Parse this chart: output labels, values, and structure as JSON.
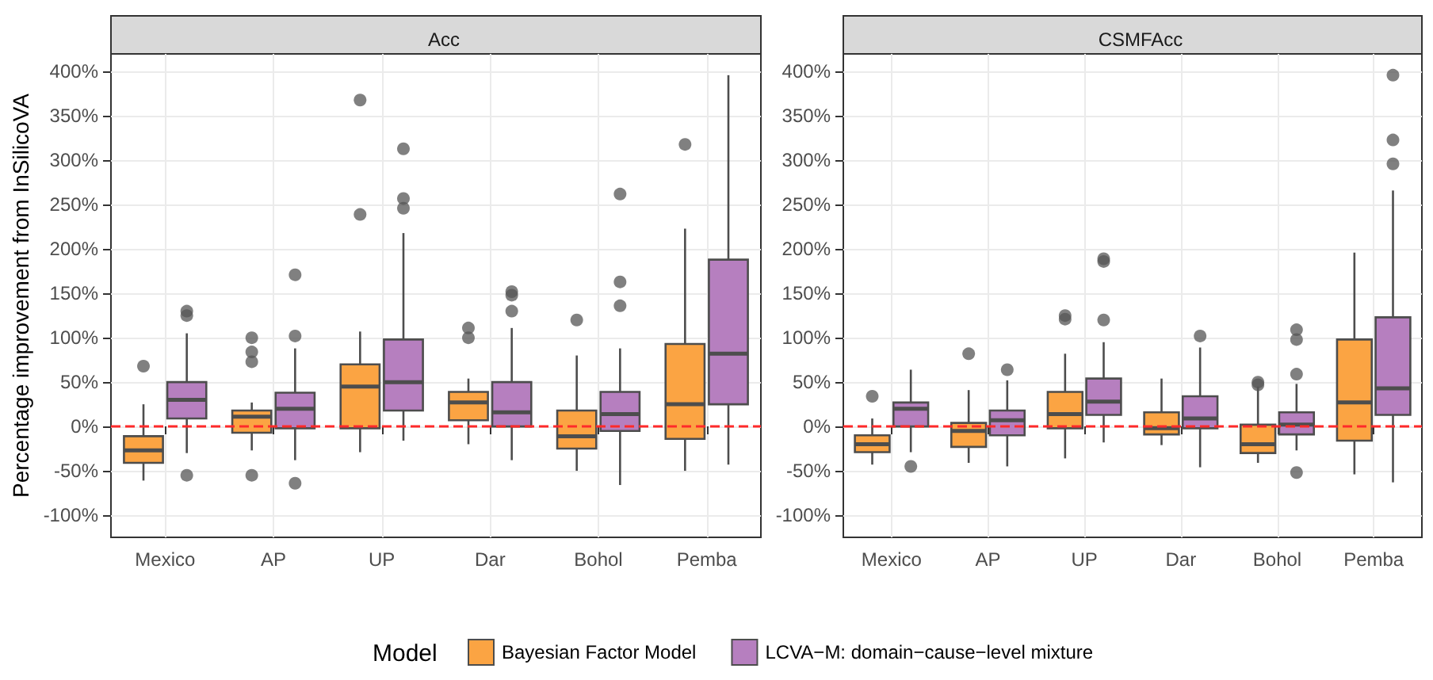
{
  "chart_data": [
    {
      "type": "box",
      "title": "Acc",
      "ylabel": "Percentage improvement from InSilicoVA",
      "legend_title": "Model",
      "legend": "bottom",
      "grid": true,
      "categories": [
        "Mexico",
        "AP",
        "UP",
        "Dar",
        "Bohol",
        "Pemba"
      ],
      "ylim": [
        -125,
        420
      ],
      "yticks": [
        {
          "value": -100,
          "label": "-100%"
        },
        {
          "value": -50,
          "label": "-50%"
        },
        {
          "value": 0,
          "label": "0%"
        },
        {
          "value": 50,
          "label": "50%"
        },
        {
          "value": 100,
          "label": "100%"
        },
        {
          "value": 150,
          "label": "150%"
        },
        {
          "value": 200,
          "label": "200%"
        },
        {
          "value": 250,
          "label": "250%"
        },
        {
          "value": 300,
          "label": "300%"
        },
        {
          "value": 350,
          "label": "350%"
        },
        {
          "value": 400,
          "label": "400%"
        }
      ],
      "ref_lines": [
        {
          "axis": "y",
          "value": 0,
          "color": "#ff2a2a",
          "line_style": "dashed"
        }
      ],
      "series": [
        {
          "name": "Bayesian Factor Model",
          "color": "#fba443",
          "boxes": [
            {
              "low": -61,
              "q1": -41,
              "median": -27,
              "q3": -11,
              "high": 25,
              "outliers": [
                68
              ]
            },
            {
              "low": -27,
              "q1": -7,
              "median": 11,
              "q3": 18,
              "high": 27,
              "outliers": [
                100,
                84,
                73,
                -55
              ]
            },
            {
              "low": -29,
              "q1": -2,
              "median": 45,
              "q3": 70,
              "high": 107,
              "outliers": [
                368,
                239
              ]
            },
            {
              "low": -20,
              "q1": 7,
              "median": 27,
              "q3": 39,
              "high": 54,
              "outliers": [
                111,
                100
              ]
            },
            {
              "low": -50,
              "q1": -25,
              "median": -11,
              "q3": 18,
              "high": 80,
              "outliers": [
                120
              ]
            },
            {
              "low": -50,
              "q1": -14,
              "median": 25,
              "q3": 93,
              "high": 223,
              "outliers": [
                318
              ]
            }
          ]
        },
        {
          "name": "LCVA−M: domain−cause−level mixture",
          "color": "#b67fbf",
          "boxes": [
            {
              "low": -30,
              "q1": 9,
              "median": 30,
              "q3": 50,
              "high": 105,
              "outliers": [
                125,
                130,
                -55
              ]
            },
            {
              "low": -38,
              "q1": -2,
              "median": 20,
              "q3": 38,
              "high": 88,
              "outliers": [
                171,
                102,
                -64
              ]
            },
            {
              "low": -16,
              "q1": 18,
              "median": 50,
              "q3": 98,
              "high": 218,
              "outliers": [
                313,
                257,
                246
              ]
            },
            {
              "low": -38,
              "q1": 0,
              "median": 16,
              "q3": 50,
              "high": 111,
              "outliers": [
                152,
                148,
                130
              ]
            },
            {
              "low": -66,
              "q1": -5,
              "median": 14,
              "q3": 39,
              "high": 88,
              "outliers": [
                262,
                163,
                136
              ]
            },
            {
              "low": -43,
              "q1": 25,
              "median": 82,
              "q3": 188,
              "high": 396
            }
          ]
        }
      ]
    },
    {
      "type": "box",
      "title": "CSMFAcc",
      "grid": true,
      "categories": [
        "Mexico",
        "AP",
        "UP",
        "Dar",
        "Bohol",
        "Pemba"
      ],
      "ylim": [
        -125,
        420
      ],
      "yticks": [
        {
          "value": -100,
          "label": "-100%"
        },
        {
          "value": -50,
          "label": "-50%"
        },
        {
          "value": 0,
          "label": "0%"
        },
        {
          "value": 50,
          "label": "50%"
        },
        {
          "value": 100,
          "label": "100%"
        },
        {
          "value": 150,
          "label": "150%"
        },
        {
          "value": 200,
          "label": "200%"
        },
        {
          "value": 250,
          "label": "250%"
        },
        {
          "value": 300,
          "label": "300%"
        },
        {
          "value": 350,
          "label": "350%"
        },
        {
          "value": 400,
          "label": "400%"
        }
      ],
      "ref_lines": [
        {
          "axis": "y",
          "value": 0,
          "color": "#ff2a2a",
          "line_style": "dashed"
        }
      ],
      "series": [
        {
          "color": "#fba443",
          "boxes": [
            {
              "low": -43,
              "q1": -29,
              "median": -20,
              "q3": -10,
              "high": 9,
              "outliers": [
                34
              ]
            },
            {
              "low": -41,
              "q1": -23,
              "median": -5,
              "q3": 4,
              "high": 41,
              "outliers": [
                82
              ]
            },
            {
              "low": -36,
              "q1": -2,
              "median": 14,
              "q3": 39,
              "high": 82,
              "outliers": [
                121,
                125
              ]
            },
            {
              "low": -21,
              "q1": -9,
              "median": -2,
              "q3": 16,
              "high": 54
            },
            {
              "low": -41,
              "q1": -30,
              "median": -20,
              "q3": 2,
              "high": 45,
              "outliers": [
                50,
                47
              ]
            },
            {
              "low": -54,
              "q1": -16,
              "median": 27,
              "q3": 98,
              "high": 196
            }
          ]
        },
        {
          "color": "#b67fbf",
          "boxes": [
            {
              "low": -29,
              "q1": 0,
              "median": 20,
              "q3": 27,
              "high": 64,
              "outliers": [
                -45
              ]
            },
            {
              "low": -45,
              "q1": -10,
              "median": 7,
              "q3": 18,
              "high": 52,
              "outliers": [
                64
              ]
            },
            {
              "low": -18,
              "q1": 13,
              "median": 28,
              "q3": 54,
              "high": 95,
              "outliers": [
                189,
                186,
                120
              ]
            },
            {
              "low": -46,
              "q1": -2,
              "median": 9,
              "q3": 34,
              "high": 89,
              "outliers": [
                102
              ]
            },
            {
              "low": -27,
              "q1": -9,
              "median": 2,
              "q3": 16,
              "high": 48,
              "outliers": [
                109,
                98,
                59,
                -52
              ]
            },
            {
              "low": -63,
              "q1": 13,
              "median": 43,
              "q3": 123,
              "high": 266,
              "outliers": [
                396,
                323,
                296
              ]
            }
          ]
        }
      ]
    }
  ]
}
